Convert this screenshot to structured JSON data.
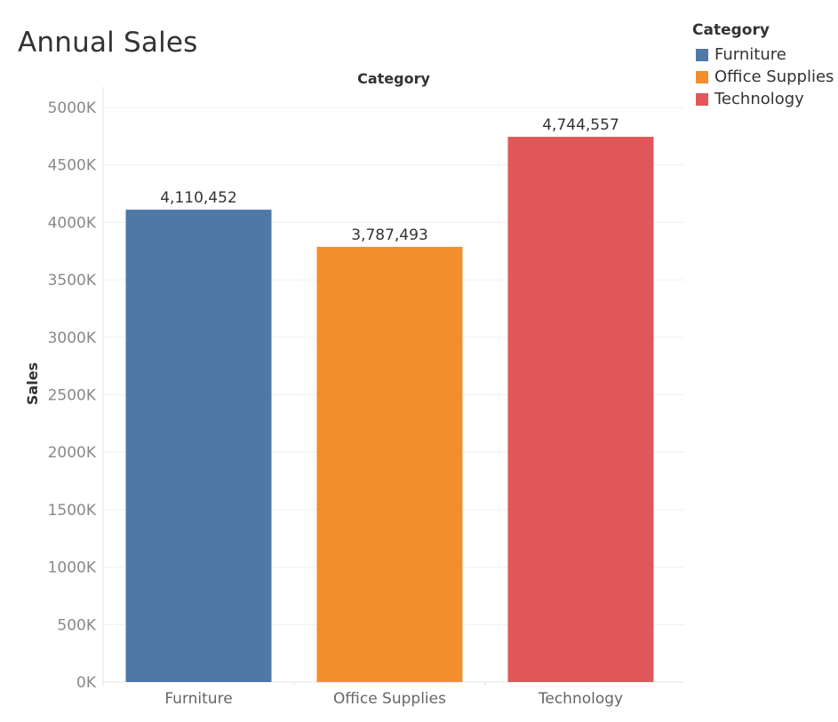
{
  "title": "Annual Sales",
  "legend": {
    "title": "Category",
    "items": [
      {
        "label": "Furniture",
        "color": "#4e79a7"
      },
      {
        "label": "Office Supplies",
        "color": "#f28e2b"
      },
      {
        "label": "Technology",
        "color": "#e15759"
      }
    ]
  },
  "chart_data": {
    "type": "bar",
    "title": "Annual Sales",
    "xlabel": "Category",
    "ylabel": "Sales",
    "categories": [
      "Furniture",
      "Office Supplies",
      "Technology"
    ],
    "values": [
      4110452,
      3787493,
      4744557
    ],
    "value_labels": [
      "4,110,452",
      "3,787,493",
      "4,744,557"
    ],
    "colors": [
      "#4e79a7",
      "#f28e2b",
      "#e15759"
    ],
    "ylim": [
      0,
      5000000
    ],
    "yticks": [
      0,
      500000,
      1000000,
      1500000,
      2000000,
      2500000,
      3000000,
      3500000,
      4000000,
      4500000,
      5000000
    ],
    "ytick_labels": [
      "0K",
      "500K",
      "1000K",
      "1500K",
      "2000K",
      "2500K",
      "3000K",
      "3500K",
      "4000K",
      "4500K",
      "5000K"
    ],
    "grid": true,
    "legend_position": "top-right"
  }
}
